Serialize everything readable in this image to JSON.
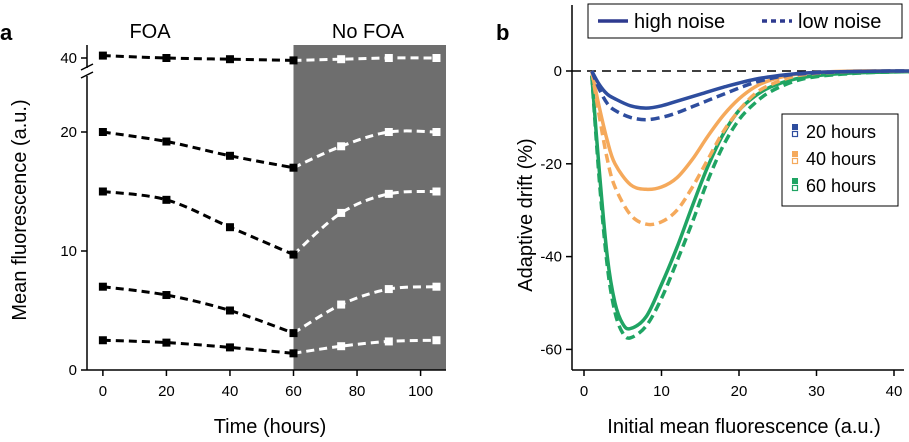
{
  "chart_data": [
    {
      "panel": "a",
      "type": "line",
      "regions": [
        "FOA",
        "No FOA"
      ],
      "shaded_region_start": 60,
      "xlabel": "Time (hours)",
      "ylabel": "Mean fluorescence (a.u.)",
      "xlim": [
        -5,
        108
      ],
      "ylim": [
        0,
        40
      ],
      "y_axis_break": true,
      "y_break_between": [
        20,
        40
      ],
      "xticks": [
        "0",
        "20",
        "40",
        "60",
        "80",
        "100"
      ],
      "yticks": [
        "0",
        "10",
        "20",
        "40"
      ],
      "series": [
        {
          "x": [
            0,
            20,
            40,
            60,
            75,
            90,
            105
          ],
          "y": [
            2.5,
            2.3,
            1.9,
            1.4,
            2.0,
            2.4,
            2.5
          ]
        },
        {
          "x": [
            0,
            20,
            40,
            60,
            75,
            90,
            105
          ],
          "y": [
            7.0,
            6.3,
            5.0,
            3.1,
            5.5,
            6.8,
            7.0
          ]
        },
        {
          "x": [
            0,
            20,
            40,
            60,
            75,
            90,
            105
          ],
          "y": [
            15.0,
            14.3,
            12.0,
            9.7,
            13.2,
            14.8,
            15.0
          ]
        },
        {
          "x": [
            0,
            20,
            40,
            60,
            75,
            90,
            105
          ],
          "y": [
            20.0,
            19.2,
            18.0,
            17.0,
            18.8,
            20.0,
            20.0
          ]
        },
        {
          "x": [
            0,
            20,
            40,
            60,
            75,
            90,
            105
          ],
          "y": [
            40.8,
            40.0,
            39.6,
            39.2,
            39.6,
            40.0,
            40.0
          ]
        }
      ],
      "marker_color": "#000000",
      "line_color_left": "#000000",
      "line_color_right": "#ffffff",
      "shade_color": "#6e6e6e"
    },
    {
      "panel": "b",
      "type": "line",
      "xlabel": "Initial mean fluorescence (a.u.)",
      "ylabel": "Adaptive drift (%)",
      "xlim": [
        -2,
        44
      ],
      "ylim": [
        -65,
        5
      ],
      "xticks": [
        "0",
        "10",
        "20",
        "30",
        "40"
      ],
      "yticks": [
        "0",
        "-20",
        "-40",
        "-60"
      ],
      "reference_line_y": 0,
      "noise_legend": [
        {
          "label": "high noise",
          "style": "solid"
        },
        {
          "label": "low noise",
          "style": "dotted"
        }
      ],
      "series": [
        {
          "name": "20 hours",
          "color": "#2e4d9e",
          "high_noise_curve": {
            "x": [
              1,
              2,
              3,
              4,
              6,
              8,
              10,
              12,
              15,
              18,
              22,
              26,
              30,
              35,
              40,
              44
            ],
            "y": [
              0,
              -3,
              -5,
              -6,
              -7.5,
              -8,
              -7.5,
              -6.5,
              -5,
              -3.5,
              -1.8,
              -0.8,
              -0.3,
              -0.1,
              0,
              0
            ]
          },
          "low_noise_curve": {
            "x": [
              1,
              2,
              3,
              4,
              6,
              8,
              10,
              12,
              15,
              18,
              22,
              26,
              30,
              35,
              40,
              44
            ],
            "y": [
              0,
              -4,
              -7,
              -8.5,
              -10,
              -10.5,
              -10,
              -9,
              -7,
              -5,
              -2.5,
              -1,
              -0.4,
              -0.1,
              0,
              0
            ]
          }
        },
        {
          "name": "40 hours",
          "color": "#f5a95b",
          "high_noise_curve": {
            "x": [
              1,
              2,
              3,
              4,
              6,
              8,
              10,
              12,
              14,
              16,
              18,
              20,
              22,
              24,
              27,
              30,
              35,
              40,
              44
            ],
            "y": [
              0,
              -8,
              -15,
              -20,
              -24.5,
              -25.5,
              -25,
              -23,
              -19,
              -14,
              -9.5,
              -6,
              -3.5,
              -2,
              -0.8,
              -0.3,
              0,
              0,
              0
            ]
          },
          "low_noise_curve": {
            "x": [
              1,
              2,
              3,
              4,
              6,
              8,
              10,
              12,
              14,
              16,
              18,
              20,
              22,
              24,
              27,
              30,
              35,
              40,
              44
            ],
            "y": [
              0,
              -10,
              -19,
              -25,
              -31,
              -33,
              -32.5,
              -30,
              -25,
              -19,
              -13,
              -8.5,
              -5,
              -3,
              -1.2,
              -0.5,
              -0.1,
              0,
              0
            ]
          }
        },
        {
          "name": "60 hours",
          "color": "#1fa463",
          "high_noise_curve": {
            "x": [
              1,
              2,
              3,
              4,
              5,
              6,
              8,
              10,
              12,
              14,
              16,
              18,
              20,
              22,
              24,
              27,
              30,
              35,
              40,
              44
            ],
            "y": [
              -1,
              -22,
              -40,
              -50,
              -54.5,
              -55.5,
              -53,
              -46,
              -38,
              -29,
              -20.5,
              -13.5,
              -8.5,
              -5.5,
              -3.5,
              -1.8,
              -1,
              -0.4,
              -0.2,
              -0.1
            ]
          },
          "low_noise_curve": {
            "x": [
              1,
              2,
              3,
              4,
              5,
              6,
              8,
              10,
              12,
              14,
              16,
              18,
              20,
              22,
              24,
              27,
              30,
              35,
              40,
              44
            ],
            "y": [
              -1,
              -24,
              -42,
              -52,
              -56.5,
              -57.5,
              -55,
              -49,
              -41,
              -32.5,
              -23.5,
              -16,
              -10.5,
              -7,
              -4.5,
              -2.3,
              -1.2,
              -0.5,
              -0.2,
              -0.1
            ]
          }
        }
      ]
    }
  ],
  "figure_labels": {
    "a": "a",
    "b": "b"
  }
}
